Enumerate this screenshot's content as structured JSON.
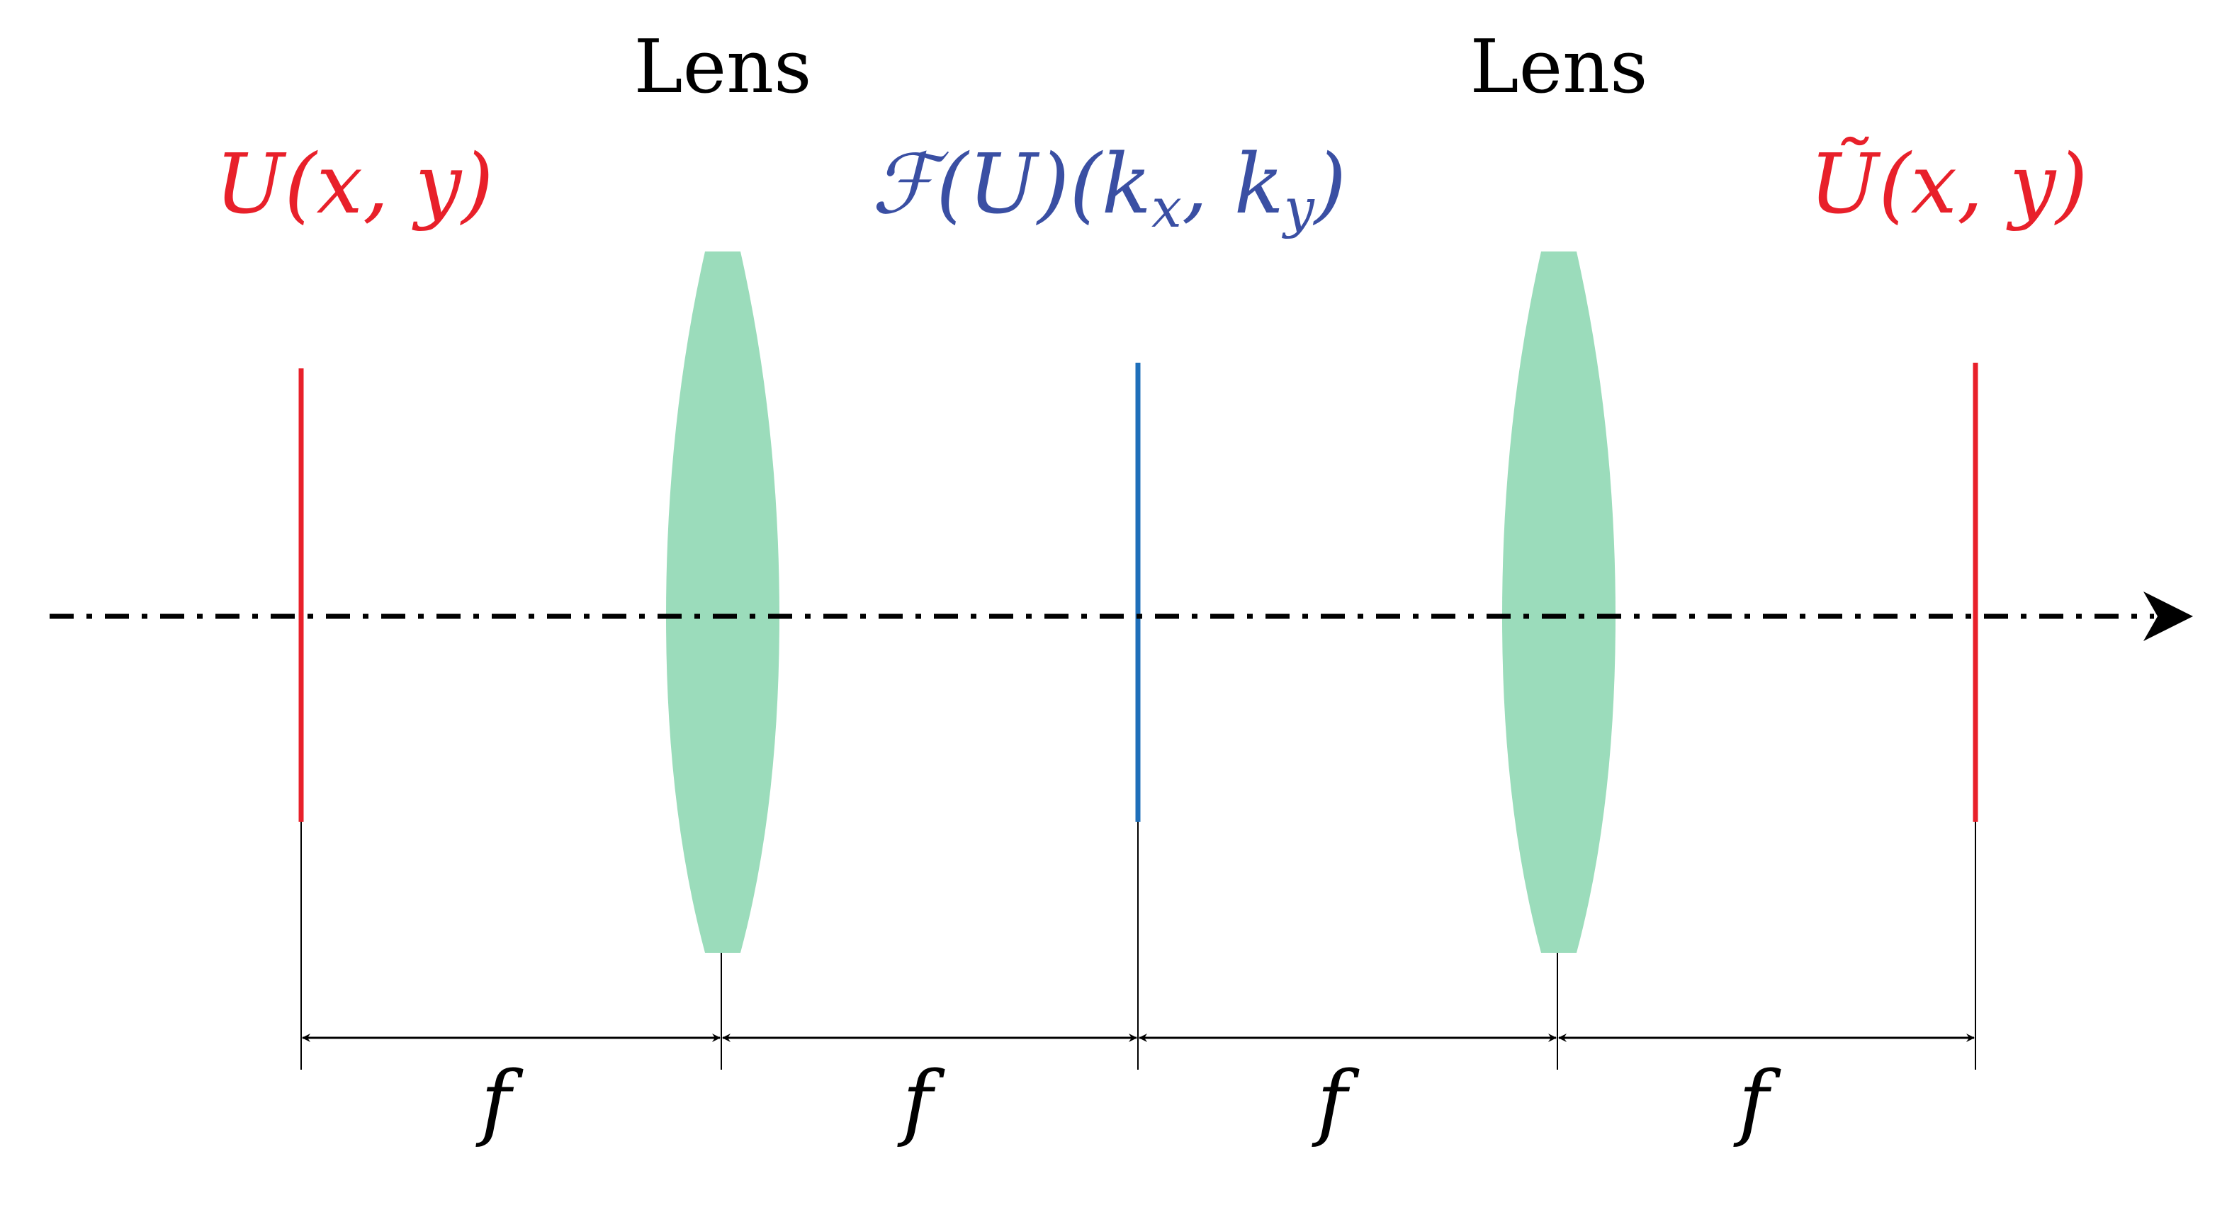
{
  "lens_labels": [
    "Lens",
    "Lens"
  ],
  "planes": {
    "input": {
      "prefix": "U",
      "args": "(x, y)",
      "color": "#e8202a"
    },
    "fourier": {
      "script": "ℱ",
      "mid": "(U)(k",
      "sub1": "x",
      "sep": ", k",
      "sub2": "y",
      "close": ")",
      "color": "#3a4fa3",
      "line_color": "#1f6fba"
    },
    "output": {
      "prefix": "Ũ",
      "args": "(x, y)",
      "color": "#e8202a"
    }
  },
  "distance_labels": [
    "f",
    "f",
    "f",
    "f"
  ],
  "colors": {
    "lens_fill": "#9bdcbb",
    "axis": "#000000"
  }
}
